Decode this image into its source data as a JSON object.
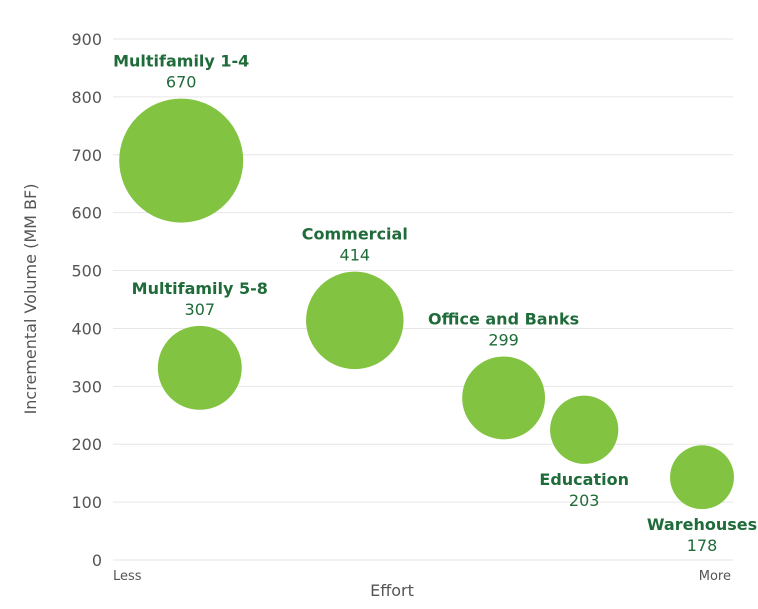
{
  "chart_data": {
    "type": "scatter",
    "xlabel": "Effort",
    "ylabel": "Incremental Volume (MM BF)",
    "x_start_label": "Less",
    "x_end_label": "More",
    "xlim": [
      0,
      10
    ],
    "ylim": [
      0,
      900
    ],
    "yticks": [
      0,
      100,
      200,
      300,
      400,
      500,
      600,
      700,
      800,
      900
    ],
    "grid": true,
    "colors": {
      "bubble": "#82c341",
      "label": "#1f6b3a",
      "grid": "#e6e6e6",
      "axis_text": "#555555"
    },
    "points": [
      {
        "name": "Multifamily 1-4",
        "label_value": "670",
        "x": 1.1,
        "y": 690,
        "size": 670
      },
      {
        "name": "Multifamily 5-8",
        "label_value": "307",
        "x": 1.4,
        "y": 332,
        "size": 307
      },
      {
        "name": "Commercial",
        "label_value": "414",
        "x": 3.9,
        "y": 414,
        "size": 414
      },
      {
        "name": "Office and Banks",
        "label_value": "299",
        "x": 6.3,
        "y": 280,
        "size": 299
      },
      {
        "name": "Education",
        "label_value": "203",
        "x": 7.6,
        "y": 225,
        "size": 203
      },
      {
        "name": "Warehouses",
        "label_value": "178",
        "x": 9.5,
        "y": 143,
        "size": 178
      }
    ]
  }
}
